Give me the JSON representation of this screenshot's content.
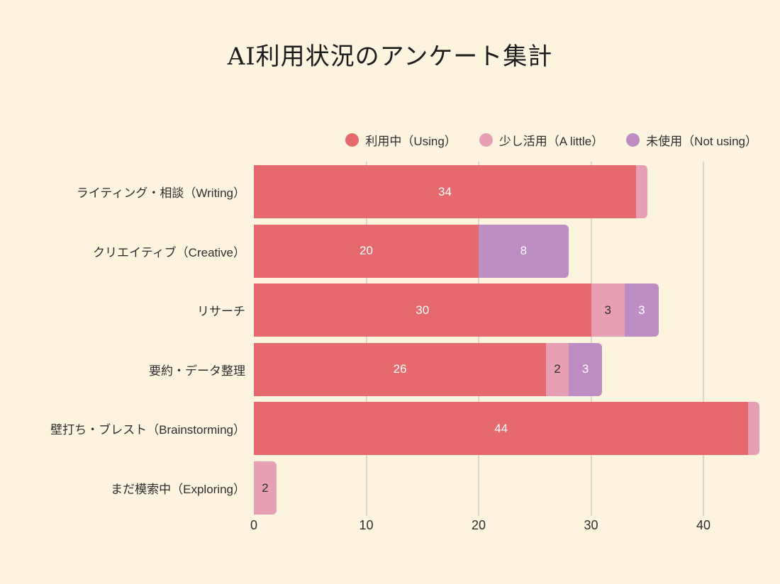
{
  "chart_data": {
    "type": "bar",
    "orientation": "horizontal",
    "stacked": true,
    "title": "AI利用状況のアンケート集計",
    "categories": [
      "ライティング・相談（Writing）",
      "クリエイティブ（Creative）",
      "リサーチ",
      "要約・データ整理",
      "壁打ち・ブレスト（Brainstorming）",
      "まだ模索中（Exploring）"
    ],
    "series": [
      {
        "name": "利用中（Using）",
        "color": "#e5696d",
        "label_color": "#ffffff",
        "values": [
          34,
          20,
          30,
          26,
          44,
          0
        ]
      },
      {
        "name": "少し活用（A little）",
        "color": "#e69fb3",
        "label_color": "#2e2e2e",
        "values": [
          1,
          0,
          3,
          2,
          1,
          2
        ]
      },
      {
        "name": "未使用（Not using）",
        "color": "#bd8dc3",
        "label_color": "#ffffff",
        "values": [
          0,
          8,
          3,
          3,
          0,
          0
        ]
      }
    ],
    "x_ticks": [
      "0",
      "10",
      "20",
      "30",
      "40"
    ],
    "xlim": [
      0,
      45.4
    ],
    "grid": "vertical",
    "legend_position": "top-right",
    "value_label_min": 2,
    "colors": {
      "background": "#fcf4df",
      "gridline": "#dcd8c8",
      "text": "#2e2e2e",
      "title_text": "#1c1c1c"
    }
  }
}
